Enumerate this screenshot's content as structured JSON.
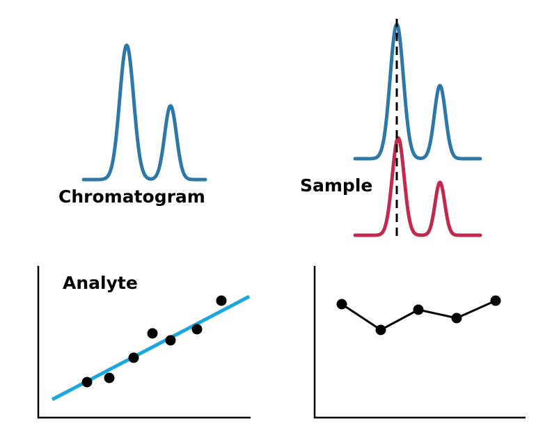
{
  "labels": {
    "chromatogram": "Chromatogram",
    "sample": "Sample",
    "analyte": "Analyte"
  }
}
